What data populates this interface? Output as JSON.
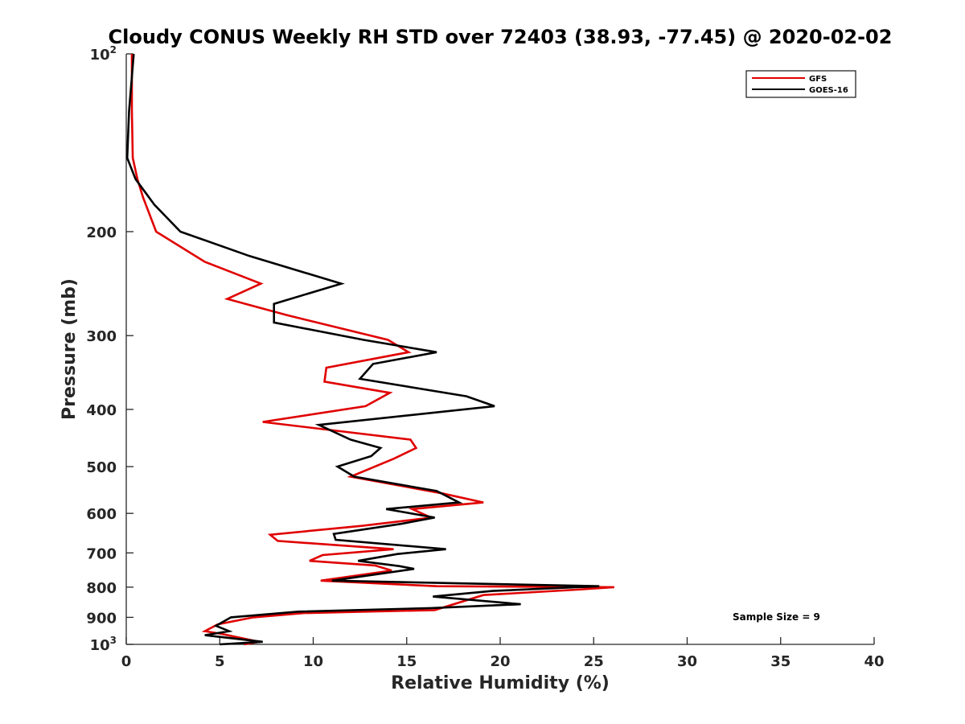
{
  "chart_data": {
    "type": "line",
    "title": "Cloudy CONUS Weekly RH STD over 72403 (38.93, -77.45) @ 2020-02-02",
    "xlabel": "Relative Humidity (%)",
    "ylabel": "Pressure (mb)",
    "xlim": [
      0,
      40
    ],
    "ylim": [
      100,
      1000
    ],
    "yscale": "log",
    "y_reversed": true,
    "grid": false,
    "legend_position": "top-right",
    "x_ticks": [
      "0",
      "5",
      "10",
      "15",
      "20",
      "25",
      "30",
      "35",
      "40"
    ],
    "y_ticks": [
      {
        "value": 100,
        "base": "10",
        "exp": "2"
      },
      {
        "value": 200,
        "label": "200"
      },
      {
        "value": 300,
        "label": "300"
      },
      {
        "value": 400,
        "label": "400"
      },
      {
        "value": 500,
        "label": "500"
      },
      {
        "value": 600,
        "label": "600"
      },
      {
        "value": 700,
        "label": "700"
      },
      {
        "value": 800,
        "label": "800"
      },
      {
        "value": 900,
        "label": "900"
      },
      {
        "value": 1000,
        "base": "10",
        "exp": "3"
      }
    ],
    "annotation": "Sample Size = 9",
    "series": [
      {
        "name": "GFS",
        "color": "#e00000",
        "points": [
          [
            0.3,
            100
          ],
          [
            0.3,
            125
          ],
          [
            0.35,
            150
          ],
          [
            0.6,
            163
          ],
          [
            0.9,
            175
          ],
          [
            1.6,
            200
          ],
          [
            4.2,
            225
          ],
          [
            7.2,
            245
          ],
          [
            5.4,
            260
          ],
          [
            8.6,
            277
          ],
          [
            14.0,
            305
          ],
          [
            15.1,
            320
          ],
          [
            10.7,
            340
          ],
          [
            10.6,
            359
          ],
          [
            14.1,
            375
          ],
          [
            12.8,
            395
          ],
          [
            7.3,
            420
          ],
          [
            15.2,
            450
          ],
          [
            15.5,
            465
          ],
          [
            14.3,
            485
          ],
          [
            12.0,
            520
          ],
          [
            16.9,
            555
          ],
          [
            19.1,
            575
          ],
          [
            15.3,
            590
          ],
          [
            15.8,
            600
          ],
          [
            16.3,
            610
          ],
          [
            12.6,
            630
          ],
          [
            7.7,
            652
          ],
          [
            8.1,
            668
          ],
          [
            14.3,
            690
          ],
          [
            10.5,
            706
          ],
          [
            9.8,
            722
          ],
          [
            13.3,
            735
          ],
          [
            14.2,
            750
          ],
          [
            10.4,
            780
          ],
          [
            16.6,
            797
          ],
          [
            26.1,
            800
          ],
          [
            24.1,
            808
          ],
          [
            19.1,
            825
          ],
          [
            16.5,
            875
          ],
          [
            9.5,
            885
          ],
          [
            6.8,
            900
          ],
          [
            4.9,
            925
          ],
          [
            4.2,
            950
          ],
          [
            5.1,
            960
          ],
          [
            7.1,
            990
          ],
          [
            6.3,
            1000
          ]
        ]
      },
      {
        "name": "GOES-16",
        "color": "#000000",
        "points": [
          [
            0.4,
            100
          ],
          [
            0.15,
            125
          ],
          [
            0.05,
            150
          ],
          [
            0.5,
            163
          ],
          [
            1.5,
            180
          ],
          [
            2.9,
            200
          ],
          [
            6.6,
            220
          ],
          [
            11.5,
            245
          ],
          [
            7.9,
            265
          ],
          [
            7.9,
            285
          ],
          [
            12.7,
            305
          ],
          [
            16.6,
            320
          ],
          [
            13.2,
            335
          ],
          [
            12.5,
            355
          ],
          [
            18.2,
            380
          ],
          [
            19.7,
            395
          ],
          [
            10.3,
            425
          ],
          [
            12.0,
            450
          ],
          [
            13.6,
            465
          ],
          [
            13.1,
            480
          ],
          [
            11.3,
            500
          ],
          [
            12.2,
            520
          ],
          [
            16.6,
            550
          ],
          [
            17.8,
            575
          ],
          [
            13.9,
            590
          ],
          [
            16.5,
            610
          ],
          [
            14.7,
            625
          ],
          [
            11.1,
            650
          ],
          [
            11.2,
            665
          ],
          [
            17.1,
            690
          ],
          [
            14.5,
            703
          ],
          [
            12.4,
            722
          ],
          [
            14.6,
            737
          ],
          [
            15.4,
            745
          ],
          [
            11.0,
            780
          ],
          [
            25.3,
            797
          ],
          [
            19.6,
            812
          ],
          [
            16.4,
            830
          ],
          [
            21.1,
            855
          ],
          [
            16.3,
            868
          ],
          [
            9.2,
            880
          ],
          [
            5.6,
            900
          ],
          [
            4.8,
            930
          ],
          [
            5.5,
            950
          ],
          [
            4.2,
            965
          ],
          [
            7.3,
            990
          ],
          [
            5.0,
            1000
          ]
        ]
      }
    ]
  }
}
